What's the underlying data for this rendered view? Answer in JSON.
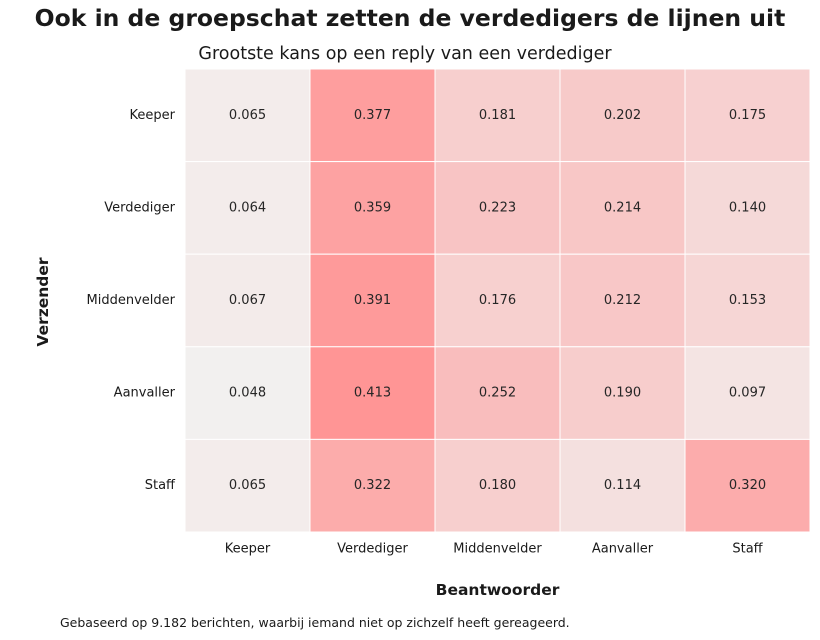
{
  "suptitle": "Ook in de groepschat zetten de verdedigers de lijnen uit",
  "footnote": "Gebaseerd op 9.182 berichten, waarbij iemand niet op zichzelf heeft gereageerd.",
  "chart_data": {
    "type": "heatmap",
    "title": "Grootste kans op een reply van een verdediger",
    "xlabel": "Beantwoorder",
    "ylabel": "Verzender",
    "x_categories": [
      "Keeper",
      "Verdediger",
      "Middenvelder",
      "Aanvaller",
      "Staff"
    ],
    "y_categories": [
      "Keeper",
      "Verdediger",
      "Middenvelder",
      "Aanvaller",
      "Staff"
    ],
    "values": [
      [
        0.065,
        0.377,
        0.181,
        0.202,
        0.175
      ],
      [
        0.064,
        0.359,
        0.223,
        0.214,
        0.14
      ],
      [
        0.067,
        0.391,
        0.176,
        0.212,
        0.153
      ],
      [
        0.048,
        0.413,
        0.252,
        0.19,
        0.097
      ],
      [
        0.065,
        0.322,
        0.18,
        0.114,
        0.32
      ]
    ],
    "value_format": "3 decimals",
    "colormap": {
      "low": "#f2f0ef",
      "high": "#ff9595"
    },
    "vmin": 0.048,
    "vmax": 0.413,
    "colorbar": false,
    "cell_border_color": "#ffffff"
  }
}
